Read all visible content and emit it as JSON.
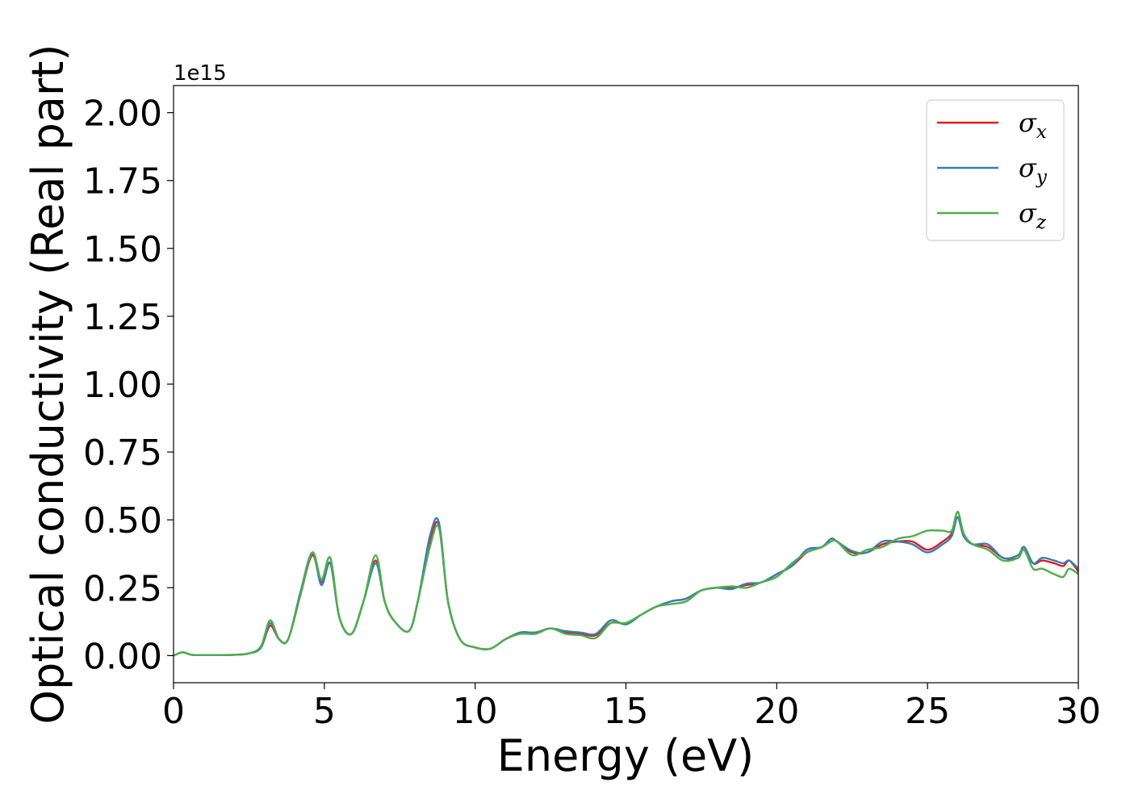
{
  "chart_data": {
    "type": "line",
    "xlabel": "Energy (eV)",
    "ylabel": "Optical conductivity (Real part)",
    "y_multiplier": "1e15",
    "xlim": [
      0,
      30
    ],
    "ylim": [
      -0.1,
      2.1
    ],
    "xticks": [
      0,
      5,
      10,
      15,
      20,
      25,
      30
    ],
    "xtick_labels": [
      "0",
      "5",
      "10",
      "15",
      "20",
      "25",
      "30"
    ],
    "yticks": [
      0.0,
      0.25,
      0.5,
      0.75,
      1.0,
      1.25,
      1.5,
      1.75,
      2.0
    ],
    "ytick_labels": [
      "0.00",
      "0.25",
      "0.50",
      "0.75",
      "1.00",
      "1.25",
      "1.50",
      "1.75",
      "2.00"
    ],
    "grid": false,
    "legend_position": "top-right",
    "series": [
      {
        "name": "σx",
        "symbol": "σ",
        "subscript": "x",
        "color": "#e41a1c",
        "x": [
          0,
          0.3,
          0.6,
          1,
          2,
          2.5,
          2.9,
          3.2,
          3.5,
          3.8,
          4.2,
          4.6,
          4.9,
          5.2,
          5.5,
          5.9,
          6.3,
          6.7,
          7.0,
          7.3,
          7.8,
          8.1,
          8.5,
          8.8,
          9.1,
          9.5,
          10.0,
          10.5,
          11.0,
          11.5,
          12.0,
          12.5,
          13.0,
          13.5,
          14.0,
          14.5,
          15.0,
          15.5,
          16.0,
          16.5,
          17.0,
          17.5,
          18.0,
          18.5,
          19.0,
          19.5,
          20.0,
          20.5,
          21.0,
          21.5,
          21.8,
          22.0,
          22.5,
          23.0,
          23.5,
          24.0,
          24.5,
          25.0,
          25.5,
          25.8,
          26.0,
          26.2,
          26.5,
          27.0,
          27.5,
          28.0,
          28.2,
          28.5,
          28.8,
          29.2,
          29.5,
          29.7,
          30.0
        ],
        "y": [
          0.0,
          0.012,
          0.003,
          0.002,
          0.003,
          0.008,
          0.03,
          0.11,
          0.06,
          0.06,
          0.22,
          0.37,
          0.27,
          0.34,
          0.14,
          0.08,
          0.2,
          0.35,
          0.2,
          0.13,
          0.09,
          0.2,
          0.42,
          0.48,
          0.2,
          0.06,
          0.03,
          0.025,
          0.06,
          0.085,
          0.085,
          0.1,
          0.085,
          0.08,
          0.075,
          0.12,
          0.12,
          0.15,
          0.18,
          0.2,
          0.21,
          0.24,
          0.25,
          0.25,
          0.26,
          0.27,
          0.3,
          0.33,
          0.38,
          0.4,
          0.43,
          0.42,
          0.38,
          0.38,
          0.41,
          0.42,
          0.42,
          0.39,
          0.42,
          0.45,
          0.51,
          0.44,
          0.41,
          0.4,
          0.36,
          0.36,
          0.4,
          0.34,
          0.35,
          0.34,
          0.33,
          0.35,
          0.31
        ]
      },
      {
        "name": "σy",
        "symbol": "σ",
        "subscript": "y",
        "color": "#377eb8",
        "x": [
          0,
          0.3,
          0.6,
          1,
          2,
          2.5,
          2.9,
          3.2,
          3.5,
          3.8,
          4.2,
          4.6,
          4.9,
          5.2,
          5.5,
          5.9,
          6.3,
          6.7,
          7.0,
          7.3,
          7.8,
          8.1,
          8.5,
          8.8,
          9.1,
          9.5,
          10.0,
          10.5,
          11.0,
          11.5,
          12.0,
          12.5,
          13.0,
          13.5,
          14.0,
          14.5,
          15.0,
          15.5,
          16.0,
          16.5,
          17.0,
          17.5,
          18.0,
          18.5,
          19.0,
          19.5,
          20.0,
          20.5,
          21.0,
          21.5,
          21.8,
          22.0,
          22.5,
          23.0,
          23.5,
          24.0,
          24.5,
          25.0,
          25.5,
          25.8,
          26.0,
          26.2,
          26.5,
          27.0,
          27.5,
          28.0,
          28.2,
          28.5,
          28.8,
          29.2,
          29.5,
          29.7,
          30.0
        ],
        "y": [
          0.0,
          0.012,
          0.003,
          0.002,
          0.003,
          0.008,
          0.03,
          0.12,
          0.06,
          0.06,
          0.23,
          0.38,
          0.26,
          0.34,
          0.14,
          0.08,
          0.2,
          0.34,
          0.2,
          0.13,
          0.09,
          0.2,
          0.44,
          0.49,
          0.2,
          0.06,
          0.03,
          0.025,
          0.06,
          0.085,
          0.085,
          0.1,
          0.09,
          0.085,
          0.08,
          0.13,
          0.115,
          0.15,
          0.18,
          0.2,
          0.21,
          0.24,
          0.25,
          0.245,
          0.265,
          0.27,
          0.3,
          0.33,
          0.39,
          0.4,
          0.43,
          0.42,
          0.385,
          0.38,
          0.42,
          0.42,
          0.41,
          0.38,
          0.41,
          0.44,
          0.51,
          0.44,
          0.41,
          0.41,
          0.36,
          0.37,
          0.4,
          0.34,
          0.36,
          0.35,
          0.34,
          0.35,
          0.32
        ]
      },
      {
        "name": "σz",
        "symbol": "σ",
        "subscript": "z",
        "color": "#4daf4a",
        "x": [
          0,
          0.3,
          0.6,
          1,
          2,
          2.5,
          2.9,
          3.2,
          3.5,
          3.8,
          4.2,
          4.6,
          4.9,
          5.2,
          5.5,
          5.9,
          6.3,
          6.7,
          7.0,
          7.3,
          7.8,
          8.1,
          8.5,
          8.8,
          9.1,
          9.5,
          10.0,
          10.5,
          11.0,
          11.5,
          12.0,
          12.5,
          13.0,
          13.5,
          14.0,
          14.5,
          15.0,
          15.5,
          16.0,
          16.5,
          17.0,
          17.5,
          18.0,
          18.5,
          19.0,
          19.5,
          20.0,
          20.5,
          21.0,
          21.5,
          21.8,
          22.0,
          22.5,
          23.0,
          23.5,
          24.0,
          24.5,
          25.0,
          25.5,
          25.8,
          26.0,
          26.2,
          26.5,
          27.0,
          27.5,
          28.0,
          28.2,
          28.5,
          28.8,
          29.2,
          29.5,
          29.7,
          30.0
        ],
        "y": [
          0.0,
          0.012,
          0.003,
          0.002,
          0.003,
          0.008,
          0.035,
          0.13,
          0.06,
          0.06,
          0.22,
          0.38,
          0.28,
          0.36,
          0.14,
          0.08,
          0.2,
          0.37,
          0.2,
          0.13,
          0.09,
          0.2,
          0.4,
          0.47,
          0.2,
          0.06,
          0.03,
          0.025,
          0.06,
          0.08,
          0.08,
          0.1,
          0.08,
          0.075,
          0.065,
          0.12,
          0.12,
          0.15,
          0.18,
          0.19,
          0.2,
          0.24,
          0.25,
          0.255,
          0.25,
          0.27,
          0.29,
          0.34,
          0.38,
          0.4,
          0.42,
          0.42,
          0.37,
          0.39,
          0.4,
          0.43,
          0.44,
          0.46,
          0.46,
          0.46,
          0.53,
          0.45,
          0.41,
          0.39,
          0.35,
          0.36,
          0.39,
          0.32,
          0.32,
          0.3,
          0.29,
          0.32,
          0.3
        ]
      }
    ]
  }
}
